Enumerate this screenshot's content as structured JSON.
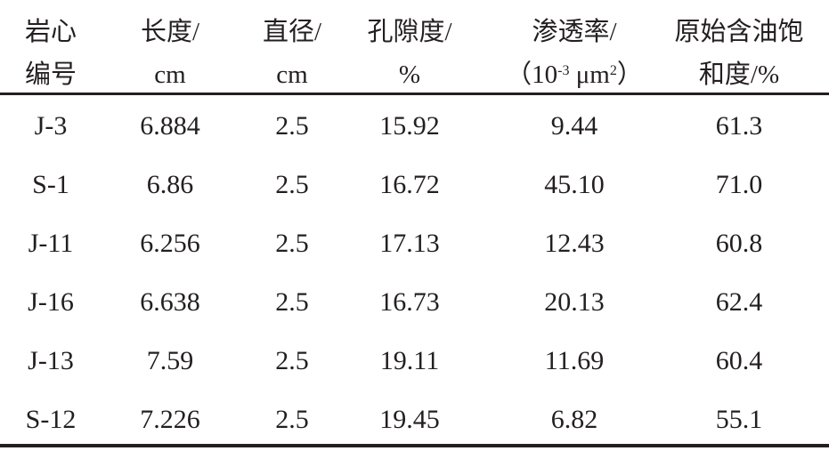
{
  "table": {
    "headers": [
      {
        "line1": "岩心",
        "line2": "编号"
      },
      {
        "line1": "长度/",
        "line2": "cm"
      },
      {
        "line1": "直径/",
        "line2": "cm"
      },
      {
        "line1": "孔隙度/",
        "line2": "%"
      },
      {
        "line1": "渗透率/",
        "line2_prefix": "（10",
        "line2_exp1": "-3",
        "line2_mid": " μm",
        "line2_exp2": "2",
        "line2_suffix": "）"
      },
      {
        "line1": "原始含油饱",
        "line2": "和度/%"
      }
    ],
    "rows": [
      [
        "J-3",
        "6.884",
        "2.5",
        "15.92",
        "9.44",
        "61.3"
      ],
      [
        "S-1",
        "6.86",
        "2.5",
        "16.72",
        "45.10",
        "71.0"
      ],
      [
        "J-11",
        "6.256",
        "2.5",
        "17.13",
        "12.43",
        "60.8"
      ],
      [
        "J-16",
        "6.638",
        "2.5",
        "16.73",
        "20.13",
        "62.4"
      ],
      [
        "J-13",
        "7.59",
        "2.5",
        "19.11",
        "11.69",
        "60.4"
      ],
      [
        "S-12",
        "7.226",
        "2.5",
        "19.45",
        "6.82",
        "55.1"
      ]
    ]
  }
}
